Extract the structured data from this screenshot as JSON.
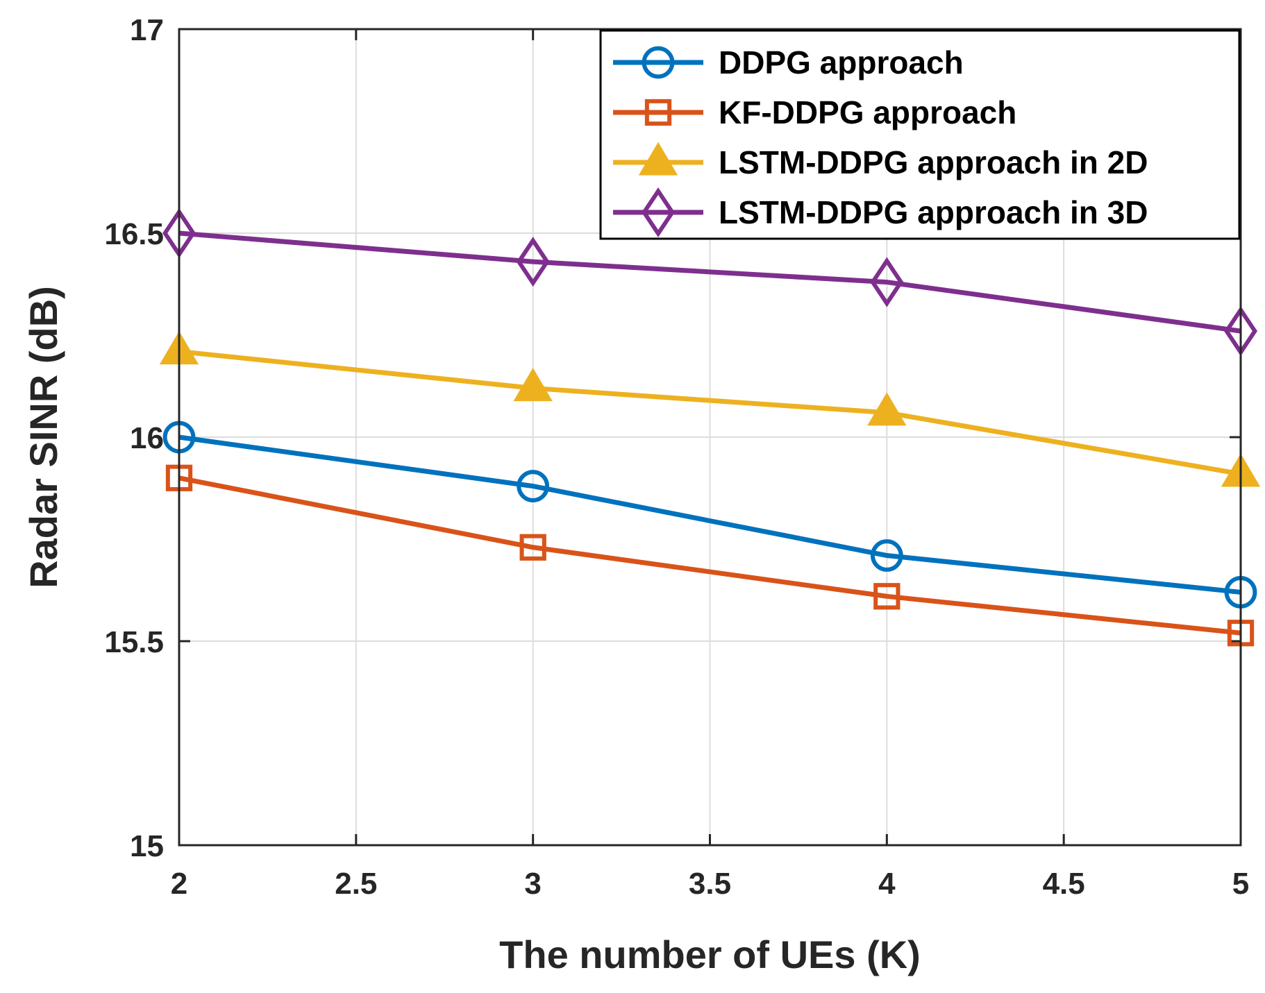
{
  "chart_data": {
    "type": "line",
    "title": "",
    "xlabel": "The number of UEs (K)",
    "ylabel": "Radar SINR (dB)",
    "xlim": [
      2,
      5
    ],
    "ylim": [
      15,
      17
    ],
    "xticks": [
      2,
      2.5,
      3,
      3.5,
      4,
      4.5,
      5
    ],
    "xtick_labels": [
      "2",
      "2.5",
      "3",
      "3.5",
      "4",
      "4.5",
      "5"
    ],
    "yticks": [
      15,
      15.5,
      16,
      16.5,
      17
    ],
    "ytick_labels": [
      "15",
      "15.5",
      "16",
      "16.5",
      "17"
    ],
    "grid": true,
    "legend_position": "top-right",
    "x": [
      2,
      3,
      4,
      5
    ],
    "series": [
      {
        "name": "DDPG approach",
        "values": [
          16.0,
          15.88,
          15.71,
          15.62
        ],
        "color": "#0072BD",
        "marker": "circle"
      },
      {
        "name": "KF-DDPG approach",
        "values": [
          15.9,
          15.73,
          15.61,
          15.52
        ],
        "color": "#D95319",
        "marker": "square"
      },
      {
        "name": "LSTM-DDPG approach in 2D",
        "values": [
          16.21,
          16.12,
          16.06,
          15.91
        ],
        "color": "#EDB120",
        "marker": "triangle"
      },
      {
        "name": "LSTM-DDPG approach in 3D",
        "values": [
          16.5,
          16.43,
          16.38,
          16.26
        ],
        "color": "#7E2F8E",
        "marker": "diamond"
      }
    ]
  }
}
